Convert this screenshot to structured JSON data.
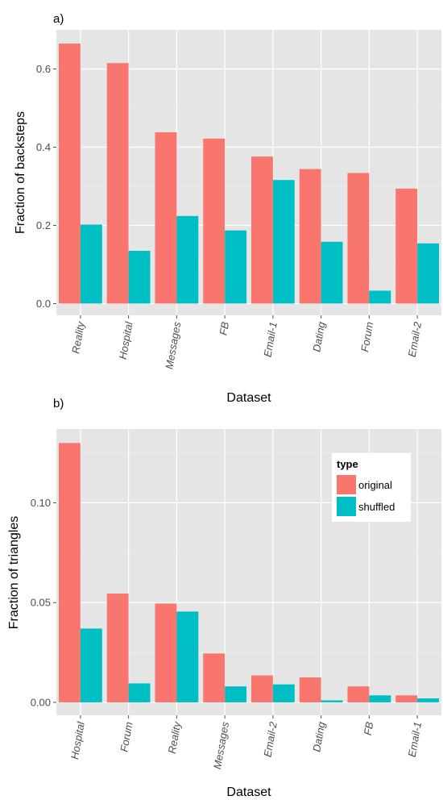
{
  "chart_data": [
    {
      "type": "bar",
      "panel_label": "a)",
      "xlabel": "Dataset",
      "ylabel": "Fraction of backsteps",
      "ylim": [
        -0.03,
        0.7
      ],
      "yticks": [
        0.0,
        0.2,
        0.4,
        0.6
      ],
      "ytick_labels": [
        "0.0",
        "0.2",
        "0.4",
        "0.6"
      ],
      "grid": true,
      "categories": [
        "Reality",
        "Hospital",
        "Messages",
        "FB",
        "Email-1",
        "Dating",
        "Forum",
        "Email-2"
      ],
      "series": [
        {
          "name": "original",
          "color": "#F8766D",
          "values": [
            0.665,
            0.615,
            0.438,
            0.422,
            0.376,
            0.344,
            0.334,
            0.294
          ]
        },
        {
          "name": "shuffled",
          "color": "#00BFC4",
          "values": [
            0.202,
            0.135,
            0.224,
            0.187,
            0.316,
            0.158,
            0.033,
            0.154
          ]
        }
      ]
    },
    {
      "type": "bar",
      "panel_label": "b)",
      "xlabel": "Dataset",
      "ylabel": "Fraction of triangles",
      "ylim": [
        -0.0065,
        0.137
      ],
      "yticks": [
        0.0,
        0.05,
        0.1
      ],
      "ytick_labels": [
        "0.00",
        "0.05",
        "0.10"
      ],
      "grid": true,
      "legend": {
        "title": "type",
        "placement": "top-right"
      },
      "categories": [
        "Hospital",
        "Forum",
        "Reality",
        "Messages",
        "Email-2",
        "Dating",
        "FB",
        "Email-1"
      ],
      "series": [
        {
          "name": "original",
          "color": "#F8766D",
          "values": [
            0.13,
            0.0545,
            0.0495,
            0.0245,
            0.0135,
            0.0125,
            0.008,
            0.0035
          ]
        },
        {
          "name": "shuffled",
          "color": "#00BFC4",
          "values": [
            0.037,
            0.0095,
            0.0455,
            0.008,
            0.009,
            0.001,
            0.0035,
            0.002
          ]
        }
      ]
    }
  ]
}
